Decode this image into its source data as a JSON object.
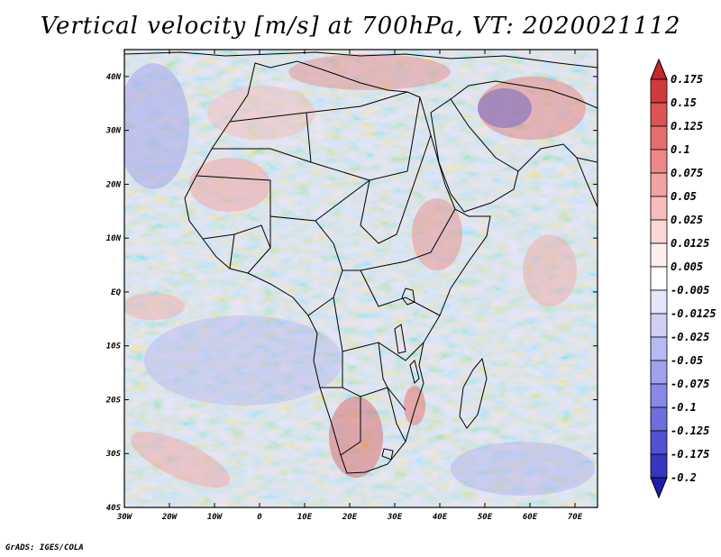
{
  "title": "Vertical velocity [m/s] at 700hPa, VT: 2020021112",
  "credit": "GrADS: IGES/COLA",
  "map": {
    "lat_labels": [
      "40N",
      "30N",
      "20N",
      "10N",
      "EQ",
      "10S",
      "20S",
      "30S",
      "40S"
    ],
    "lon_labels": [
      "30W",
      "20W",
      "10W",
      "0",
      "10E",
      "20E",
      "30E",
      "40E",
      "50E",
      "60E",
      "70E"
    ],
    "extent": {
      "lon_min": -30,
      "lon_max": 75,
      "lat_min": -40,
      "lat_max": 45
    }
  },
  "colorbar": {
    "labels": [
      "0.175",
      "0.15",
      "0.125",
      "0.1",
      "0.075",
      "0.05",
      "0.025",
      "0.0125",
      "0.005",
      "-0.005",
      "-0.0125",
      "-0.025",
      "-0.05",
      "-0.075",
      "-0.1",
      "-0.125",
      "-0.175",
      "-0.2"
    ],
    "colors": [
      "#c42828",
      "#d13a3a",
      "#dc5454",
      "#e56e6e",
      "#ec8888",
      "#f2a2a2",
      "#f6bcbc",
      "#fad6d6",
      "#fdeeee",
      "#ffffff",
      "#e6e6fa",
      "#d0d0f6",
      "#b8b8f2",
      "#a0a0ec",
      "#8888e6",
      "#6e6edc",
      "#5252d0",
      "#3636c0",
      "#1e1eac"
    ]
  }
}
